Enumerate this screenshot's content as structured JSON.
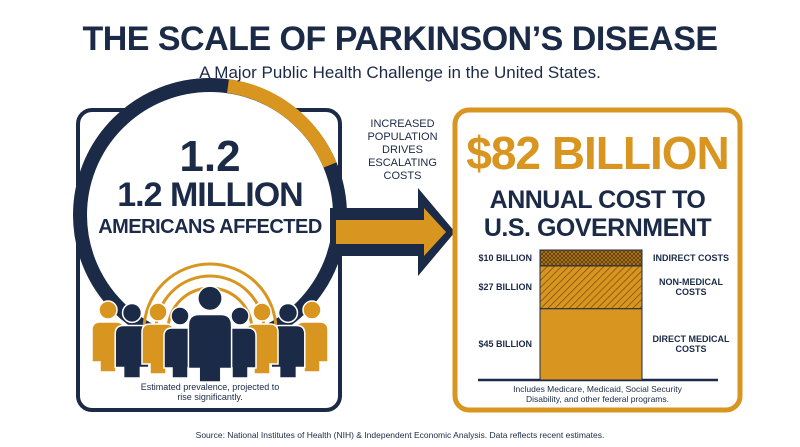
{
  "header": {
    "title": "THE SCALE OF PARKINSON’S DISEASE",
    "subtitle": "A Major Public Health Challenge in the United States."
  },
  "prevalence": {
    "figure": "1.2",
    "headline": "1.2 MILLION",
    "label": "AMERICANS AFFECTED",
    "note": "Estimated prevalence, projected to rise significantly."
  },
  "arrow_label": "INCREASED POPULATION DRIVES ESCALATING COSTS",
  "cost": {
    "headline": "$82 BILLION",
    "label_line1": "ANNUAL COST TO",
    "label_line2": "U.S. GOVERNMENT",
    "chart": {
      "type": "stacked-bar",
      "segments": [
        {
          "name": "INDIRECT COSTS",
          "value": 10,
          "value_label": "$10 BILLION"
        },
        {
          "name": "NON-MEDICAL COSTS",
          "value": 27,
          "value_label": "$27 BILLION"
        },
        {
          "name": "DIRECT MEDICAL COSTS",
          "value": 45,
          "value_label": "$45 BILLION"
        }
      ]
    },
    "note": "Includes Medicare, Medicaid, Social Security Disability, and other federal programs."
  },
  "source": "Source: National Institutes of Health (NIH) & Independent Economic Analysis. Data reflects recent estimates."
}
